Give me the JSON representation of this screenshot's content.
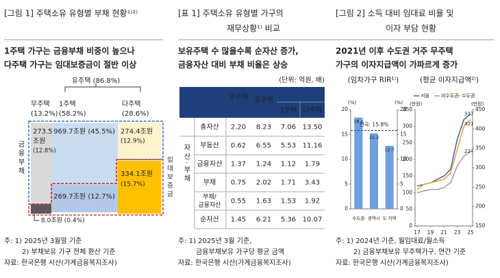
{
  "panels": [
    {
      "title": [
        "[그림 1] 주택소유 유형별 부채 현황¹⁾²⁾"
      ],
      "subtitle": [
        "1주택 가구는 금융부채 비중이 높으나",
        "다주택 가구는 임대보증금이 절반 이상"
      ],
      "diagram": {
        "owner": "유주택 (86.8%)",
        "groups": [
          {
            "name": "무주택",
            "share": "(13.2%)"
          },
          {
            "name": "1주택",
            "share": "(58.2%)"
          },
          {
            "name": "다주택",
            "share": "(28.6%)"
          }
        ],
        "debt_label": "금융부채",
        "deposit_label": "임대보증금",
        "boxes": [
          [
            "273.5",
            "조원",
            "(12.8%)"
          ],
          [
            "969.7조원 (45.5%)"
          ],
          [
            "274.4조원",
            "(12.9%)"
          ],
          [
            "334.1조원",
            "(15.7%)"
          ],
          [
            "269.7조원 (12.7%)"
          ],
          [
            "8.0조원 (0.4%)"
          ]
        ]
      },
      "notes": [
        "주: 1) 2025년 3월말 기준",
        "2) 부채보유 가구 전체 환산 기준",
        "자료: 한국은행 시산(가계금융복지조사)"
      ]
    },
    {
      "title": [
        "[표 1] 주택소유 유형별 가구의",
        "재무상황¹⁾ 비교"
      ],
      "subtitle": [
        "보유주택 수 많을수록 순자산 증가,",
        "금융자산 대비 부채 비율은 상승"
      ],
      "table": {
        "unit": "(단위: 억원, 배)",
        "columns": [
          "무주택",
          "유주택",
          "1주택",
          "다주택"
        ],
        "group": "자산·부채",
        "rows": [
          {
            "label": "총자산",
            "cells": [
              "2.20",
              "8.23",
              "7.06",
              "13.50"
            ]
          },
          {
            "label": "부동산",
            "cells": [
              "0.62",
              "6.55",
              "5.53",
              "11.16"
            ]
          },
          {
            "label": "금융자산",
            "cells": [
              "1.37",
              "1.24",
              "1.12",
              "1.79"
            ]
          },
          {
            "label": "부채",
            "cells": [
              "0.75",
              "2.02",
              "1.71",
              "3.43"
            ]
          },
          {
            "label": [
              "부채/",
              "금융자산"
            ],
            "cells": [
              "0.55",
              "1.63",
              "1.53",
              "1.92"
            ]
          },
          {
            "label": "순자산",
            "cells": [
              "1.45",
              "6.21",
              "5.36",
              "10.07"
            ]
          }
        ]
      },
      "notes": [
        "주: 1) 2025년 3월 기준,",
        "금융부채보유 가구당 평균 금액",
        "자료: 한국은행 시산(가계금융복지조사)"
      ]
    },
    {
      "title": [
        "[그림 2] 소득 대비 임대료 비율 및",
        "이자 부담 현황"
      ],
      "subtitle": [
        "2021년 이후 수도권 거주 무주택",
        "가구의 이자지급액이 가파르게 증가"
      ],
      "charts": [
        {
          "type": "bar",
          "title": "(임차가구 RIR¹⁾)",
          "unit": "(%)",
          "categories": [
            "수도권",
            "광역시",
            "도 지역"
          ],
          "values": [
            18.4,
            15.2,
            12.7
          ],
          "color": "#6f9fdc",
          "ylim": [
            0,
            20
          ],
          "yticks": [
            0,
            5,
            10,
            15,
            20
          ],
          "y2lim": [
            0,
            20
          ],
          "y2ticks": [
            0,
            5,
            10,
            15,
            20
          ],
          "reference": {
            "label": "전국: 15.8%",
            "value": 15.8
          }
        },
        {
          "type": "line",
          "title": "(평균 이자지급액²⁾)",
          "unit": "(만원)",
          "x": [
            17,
            18,
            19,
            20,
            21,
            22,
            23,
            24,
            25
          ],
          "xticks": [
            17,
            19,
            21,
            23,
            25
          ],
          "ylim": [
            0,
            350
          ],
          "yticks": [
            0,
            50,
            100,
            150,
            200,
            250,
            300,
            350
          ],
          "y2lim": [
            150,
            450
          ],
          "y2ticks": [
            150,
            200,
            250,
            300,
            350,
            400,
            450
          ],
          "series": [
            {
              "name": "서울",
              "color": "#3a5fa8",
              "values": [
                120,
                125,
                130,
                140,
                150,
                170,
                260,
                320,
                337
              ]
            },
            {
              "name": "비수도권",
              "color": "#9e9e9e",
              "values": [
                100,
                105,
                110,
                110,
                115,
                130,
                180,
                210,
                224
              ]
            },
            {
              "name": "수도권",
              "color": "#f0a030",
              "values": [
                110,
                125,
                130,
                135,
                140,
                160,
                230,
                300,
                321
              ]
            }
          ]
        }
      ],
      "notes": [
        "주: 1) 2024년 기준, 월임대료/월소득",
        "2) 금융부채보유 무주택가구, 연간 기준",
        "자료: 한국은행 시산(가계금융복지조사)"
      ]
    }
  ]
}
